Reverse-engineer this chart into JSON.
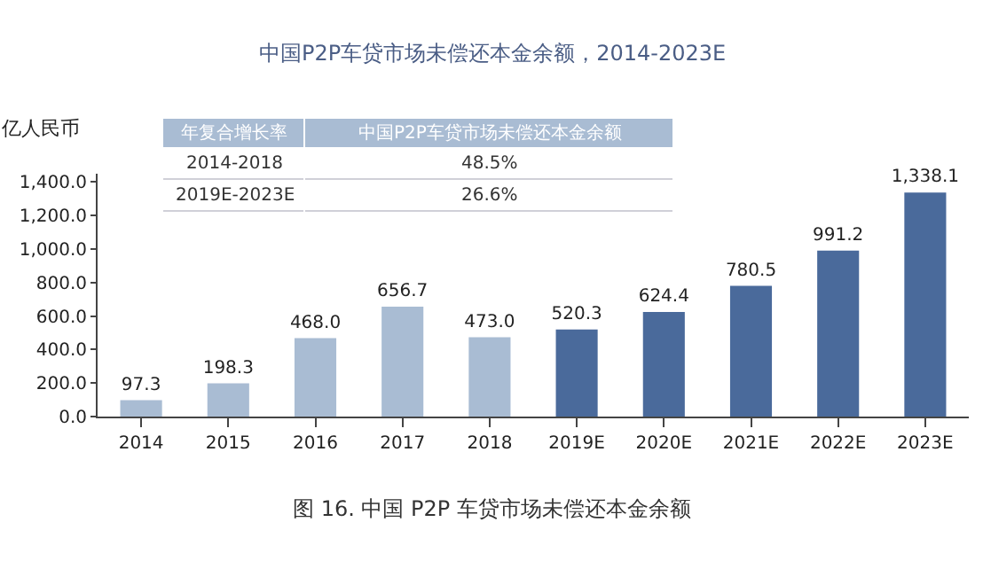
{
  "chart_data": {
    "type": "bar",
    "title": "中国P2P车贷市场未偿还本金余额，2014-2023E",
    "ylabel": "亿人民币",
    "categories": [
      "2014",
      "2015",
      "2016",
      "2017",
      "2018",
      "2019E",
      "2020E",
      "2021E",
      "2022E",
      "2023E"
    ],
    "values": [
      97.3,
      198.3,
      468.0,
      656.7,
      473.0,
      520.3,
      624.4,
      780.5,
      991.2,
      1338.1
    ],
    "colors": [
      "#a9bcd3",
      "#a9bcd3",
      "#a9bcd3",
      "#a9bcd3",
      "#a9bcd3",
      "#4a6a9b",
      "#4a6a9b",
      "#4a6a9b",
      "#4a6a9b",
      "#4a6a9b"
    ],
    "value_labels": [
      "97.3",
      "198.3",
      "468.0",
      "656.7",
      "473.0",
      "520.3",
      "624.4",
      "780.5",
      "991.2",
      "1,338.1"
    ],
    "ylim": [
      0,
      1450
    ],
    "yticks": [
      {
        "value": 0,
        "label": "0.0"
      },
      {
        "value": 200,
        "label": "200.0"
      },
      {
        "value": 400,
        "label": "400.0"
      },
      {
        "value": 600,
        "label": "600.0"
      },
      {
        "value": 800,
        "label": "800.0"
      },
      {
        "value": 1000,
        "label": "1,000.0"
      },
      {
        "value": 1200,
        "label": "1,200.0"
      },
      {
        "value": 1400,
        "label": "1,400.0"
      }
    ],
    "annotations": [
      "年复合增长率",
      "中国P2P车贷市场未偿还本金余额",
      "2014-2018",
      "48.5%",
      "2019E-2023E",
      "26.6%",
      "图 16. 中国 P2P 车贷市场未偿还本金余额"
    ]
  }
}
